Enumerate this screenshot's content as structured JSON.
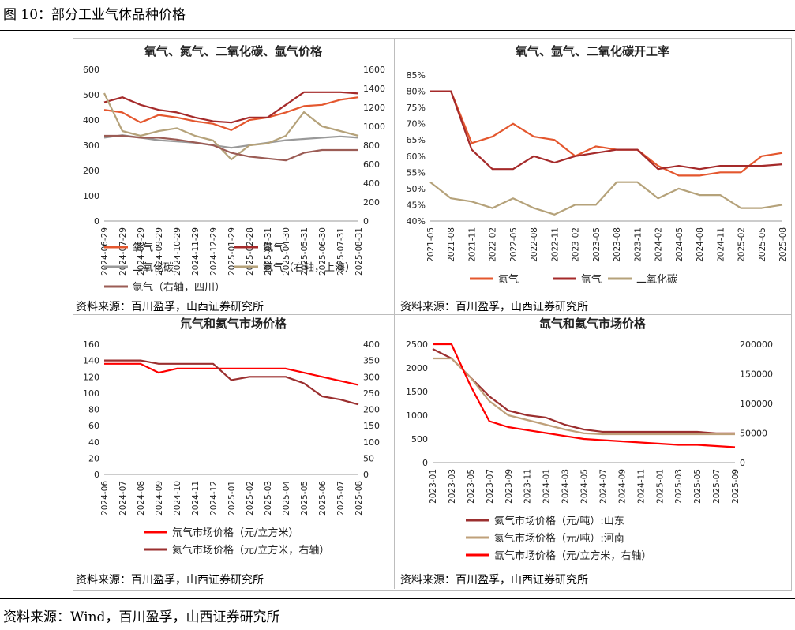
{
  "figure_title": "图 10：部分工业气体品种价格",
  "footer": "资料来源：Wind，百川盈孚，山西证券研究所",
  "panel_source": "资料来源：百川盈孚，山西证券研究所",
  "colors": {
    "orange": "#e4572e",
    "darkred": "#a52a2a",
    "grey": "#999999",
    "khaki": "#b5a27a",
    "mauve": "#9b5c55",
    "red": "#ff0000",
    "brown": "#9b2f2f",
    "tan": "#bfa07a"
  },
  "chart_data": [
    {
      "type": "line",
      "title": "氧气、氮气、二氧化碳、氩气价格",
      "x": [
        "2024-06-29",
        "2024-07-29",
        "2024-08-29",
        "2024-09-29",
        "2024-10-29",
        "2024-11-29",
        "2024-12-29",
        "2025-01-29",
        "2025-02-28",
        "2025-03-31",
        "2025-04-30",
        "2025-05-31",
        "2025-06-30",
        "2025-07-31",
        "2025-08-31"
      ],
      "y_ticks": [
        "0",
        "100",
        "200",
        "300",
        "400",
        "500",
        "600"
      ],
      "y2_ticks": [
        "0",
        "200",
        "400",
        "600",
        "800",
        "1000",
        "1200",
        "1400",
        "1600"
      ],
      "ylim": [
        0,
        600
      ],
      "y2lim": [
        0,
        1600
      ],
      "series": [
        {
          "name": "氧气",
          "axis": "left",
          "color": "#e4572e",
          "values": [
            440,
            430,
            390,
            420,
            410,
            395,
            385,
            360,
            400,
            410,
            430,
            455,
            460,
            480,
            490
          ]
        },
        {
          "name": "氮气",
          "axis": "left",
          "color": "#a52a2a",
          "values": [
            470,
            490,
            460,
            440,
            430,
            410,
            395,
            390,
            410,
            410,
            460,
            510,
            510,
            510,
            505
          ]
        },
        {
          "name": "二氧化碳",
          "axis": "left",
          "color": "#999999",
          "values": [
            330,
            340,
            330,
            320,
            315,
            310,
            300,
            290,
            300,
            310,
            320,
            325,
            330,
            335,
            330
          ]
        },
        {
          "name": "氩气（右轴，上海）",
          "axis": "right",
          "color": "#b5a27a",
          "values": [
            1350,
            950,
            900,
            950,
            980,
            900,
            850,
            650,
            800,
            820,
            900,
            1150,
            1000,
            950,
            900
          ]
        },
        {
          "name": "氩气（右轴，四川）",
          "axis": "right",
          "color": "#9b5c55",
          "values": [
            900,
            900,
            880,
            880,
            860,
            830,
            800,
            720,
            680,
            660,
            640,
            720,
            750,
            750,
            750
          ]
        }
      ],
      "legend": [
        "氧气",
        "氮气",
        "二氧化碳",
        "氩气（右轴，上海）",
        "氩气（右轴，四川）"
      ]
    },
    {
      "type": "line",
      "title": "氧气、氩气、二氧化碳开工率",
      "x": [
        "2021-05",
        "2021-08",
        "2021-11",
        "2022-02",
        "2022-05",
        "2022-08",
        "2022-11",
        "2023-02",
        "2023-05",
        "2023-08",
        "2023-11",
        "2024-02",
        "2024-05",
        "2024-08",
        "2024-11",
        "2025-02",
        "2025-05",
        "2025-08"
      ],
      "y_ticks": [
        "40%",
        "45%",
        "50%",
        "55%",
        "60%",
        "65%",
        "70%",
        "75%",
        "80%",
        "85%"
      ],
      "ylim": [
        40,
        85
      ],
      "series": [
        {
          "name": "氮气",
          "color": "#e4572e",
          "values": [
            80,
            80,
            64,
            66,
            70,
            66,
            65,
            60,
            63,
            62,
            62,
            57,
            54,
            54,
            55,
            55,
            60,
            61
          ]
        },
        {
          "name": "氩气",
          "color": "#a52a2a",
          "values": [
            80,
            80,
            62,
            56,
            56,
            60,
            58,
            60,
            61,
            62,
            62,
            56,
            57,
            56,
            57,
            57,
            57,
            57.5
          ]
        },
        {
          "name": "二氧化碳",
          "color": "#b5a27a",
          "values": [
            52,
            47,
            46,
            44,
            47,
            44,
            42,
            45,
            45,
            52,
            52,
            47,
            50,
            48,
            48,
            44,
            44,
            45
          ]
        }
      ],
      "legend": [
        "氮气",
        "氩气",
        "二氧化碳"
      ]
    },
    {
      "type": "line",
      "title": "氘气和氦气市场价格",
      "x": [
        "2024-06",
        "2024-07",
        "2024-08",
        "2024-09",
        "2024-10",
        "2024-11",
        "2024-12",
        "2025-01",
        "2025-02",
        "2025-03",
        "2025-04",
        "2025-05",
        "2025-06",
        "2025-07",
        "2025-08"
      ],
      "y_ticks": [
        "0",
        "20",
        "40",
        "60",
        "80",
        "100",
        "120",
        "140",
        "160"
      ],
      "y2_ticks": [
        "0",
        "50",
        "100",
        "150",
        "200",
        "250",
        "300",
        "350",
        "400"
      ],
      "ylim": [
        0,
        160
      ],
      "y2lim": [
        0,
        400
      ],
      "series": [
        {
          "name": "氘气市场价格（元/立方米）",
          "axis": "left",
          "color": "#ff0000",
          "values": [
            136,
            136,
            136,
            125,
            130,
            130,
            130,
            130,
            130,
            130,
            130,
            125,
            120,
            115,
            110
          ]
        },
        {
          "name": "氦气市场价格（元/立方米，右轴）",
          "axis": "right",
          "color": "#9b2f2f",
          "values": [
            350,
            350,
            350,
            340,
            340,
            340,
            340,
            290,
            300,
            300,
            300,
            280,
            240,
            230,
            215
          ]
        }
      ],
      "legend": [
        "氘气市场价格（元/立方米）",
        "氦气市场价格（元/立方米，右轴）"
      ]
    },
    {
      "type": "line",
      "title": "氙气和氦气市场价格",
      "x": [
        "2023-01",
        "2023-03",
        "2023-05",
        "2023-07",
        "2023-09",
        "2023-11",
        "2024-01",
        "2024-03",
        "2024-05",
        "2024-07",
        "2024-09",
        "2024-11",
        "2025-01",
        "2025-03",
        "2025-05",
        "2025-07",
        "2025-09"
      ],
      "y_ticks": [
        "0",
        "500",
        "1000",
        "1500",
        "2000",
        "2500"
      ],
      "y2_ticks": [
        "0",
        "50000",
        "100000",
        "150000",
        "200000"
      ],
      "ylim": [
        0,
        2500
      ],
      "y2lim": [
        0,
        200000
      ],
      "series": [
        {
          "name": "氦气市场价格（元/吨）:山东",
          "axis": "left",
          "color": "#9b2f2f",
          "values": [
            2400,
            2200,
            1800,
            1400,
            1100,
            1000,
            950,
            800,
            700,
            650,
            650,
            650,
            650,
            650,
            650,
            620,
            620
          ]
        },
        {
          "name": "氦气市场价格（元/吨）:河南",
          "axis": "left",
          "color": "#bfa07a",
          "values": [
            2200,
            2200,
            1800,
            1300,
            1000,
            900,
            800,
            700,
            620,
            600,
            600,
            600,
            600,
            600,
            600,
            600,
            600
          ]
        },
        {
          "name": "氙气市场价格（元/立方米，右轴）",
          "axis": "right",
          "color": "#ff0000",
          "values": [
            200000,
            200000,
            130000,
            70000,
            60000,
            55000,
            50000,
            45000,
            40000,
            38000,
            36000,
            34000,
            32000,
            30000,
            30000,
            28000,
            26000
          ]
        }
      ],
      "legend": [
        "氦气市场价格（元/吨）:山东",
        "氦气市场价格（元/吨）:河南",
        "氙气市场价格（元/立方米，右轴）"
      ]
    }
  ]
}
